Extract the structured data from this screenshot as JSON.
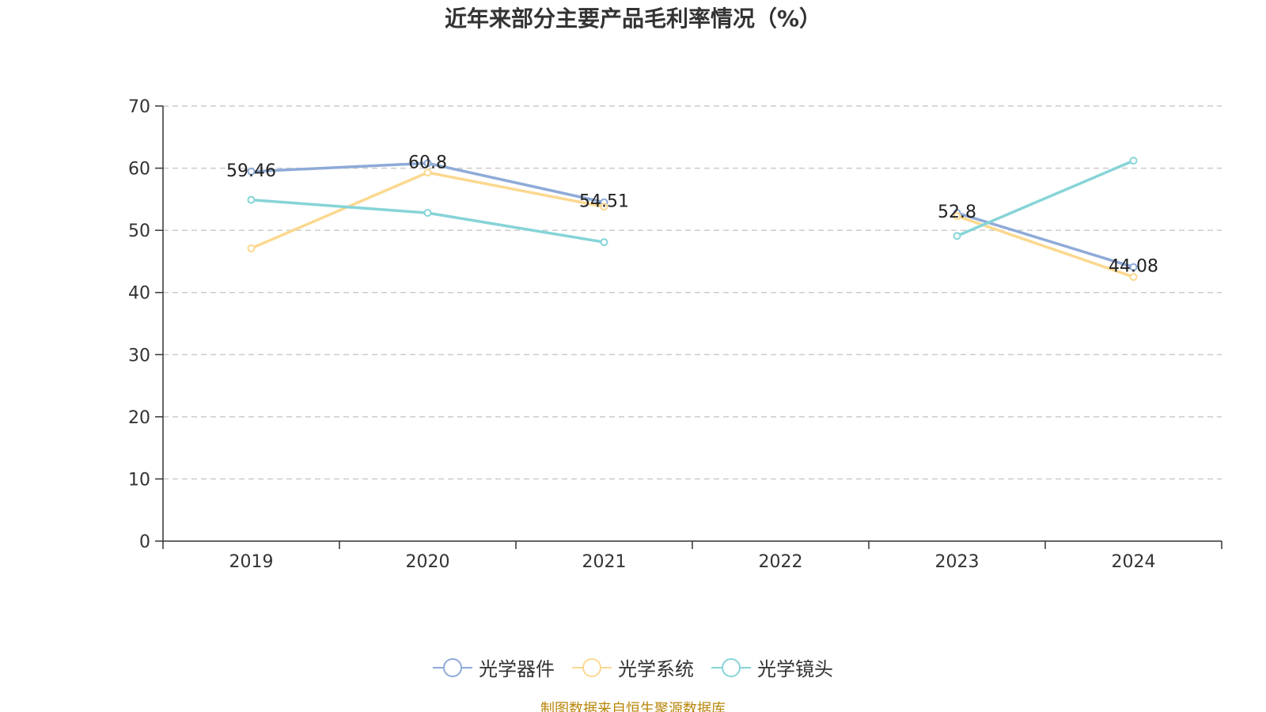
{
  "title": "近年来部分主要产品毛利率情况（%）",
  "source": "制图数据来自恒生聚源数据库",
  "chart_data": {
    "type": "line",
    "title": "近年来部分主要产品毛利率情况（%）",
    "categories": [
      "2019",
      "2020",
      "2021",
      "2022",
      "2023",
      "2024"
    ],
    "ylim": [
      0,
      70
    ],
    "yticks": [
      0,
      10,
      20,
      30,
      40,
      50,
      60,
      70
    ],
    "grid": true,
    "legend_position": "bottom",
    "series": [
      {
        "name": "光学器件",
        "color": "#8eaad8",
        "values": [
          59.46,
          60.8,
          54.51,
          null,
          52.8,
          44.08
        ],
        "labels": [
          "59.46",
          "60.8",
          "54.51",
          "",
          "52.8",
          "44.08"
        ]
      },
      {
        "name": "光学系统",
        "color": "#fbd88f",
        "values": [
          47.1,
          59.3,
          53.8,
          null,
          52.3,
          42.5
        ],
        "labels": [
          "",
          "",
          "",
          "",
          "",
          ""
        ]
      },
      {
        "name": "光学镜头",
        "color": "#86d4d8",
        "values": [
          54.9,
          52.8,
          48.1,
          null,
          49.1,
          61.2
        ],
        "labels": [
          "",
          "",
          "",
          "",
          "",
          ""
        ]
      }
    ]
  }
}
